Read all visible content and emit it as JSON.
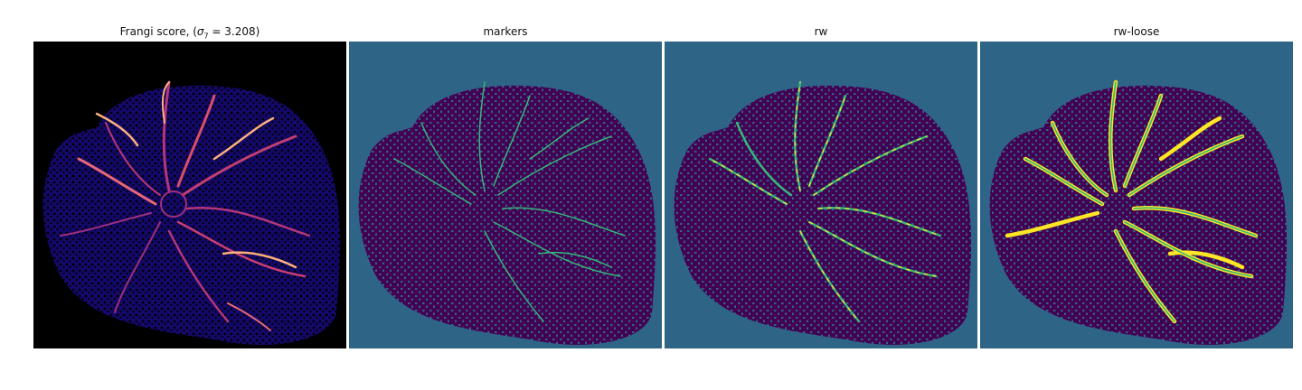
{
  "figure": {
    "panels": [
      {
        "id": "frangi",
        "title_main": "Frangi score, (",
        "title_sigma": "σ",
        "title_sub": "7",
        "title_eq": " = 3.208)",
        "cmap": "magma"
      },
      {
        "id": "markers",
        "title": "markers",
        "cmap": "viridis"
      },
      {
        "id": "rw",
        "title": "rw",
        "cmap": "viridis"
      },
      {
        "id": "rw-loose",
        "title": "rw-loose",
        "cmap": "viridis"
      }
    ],
    "colors": {
      "background_black": "#000000",
      "tissue_blue": "#1f0f8c",
      "vessel_magenta": "#b5367a",
      "vessel_bright": "#fcb07d",
      "viridis_bg": "#2e6587",
      "viridis_dark": "#440154",
      "viridis_green": "#35b779",
      "viridis_yellow": "#fde725"
    }
  }
}
